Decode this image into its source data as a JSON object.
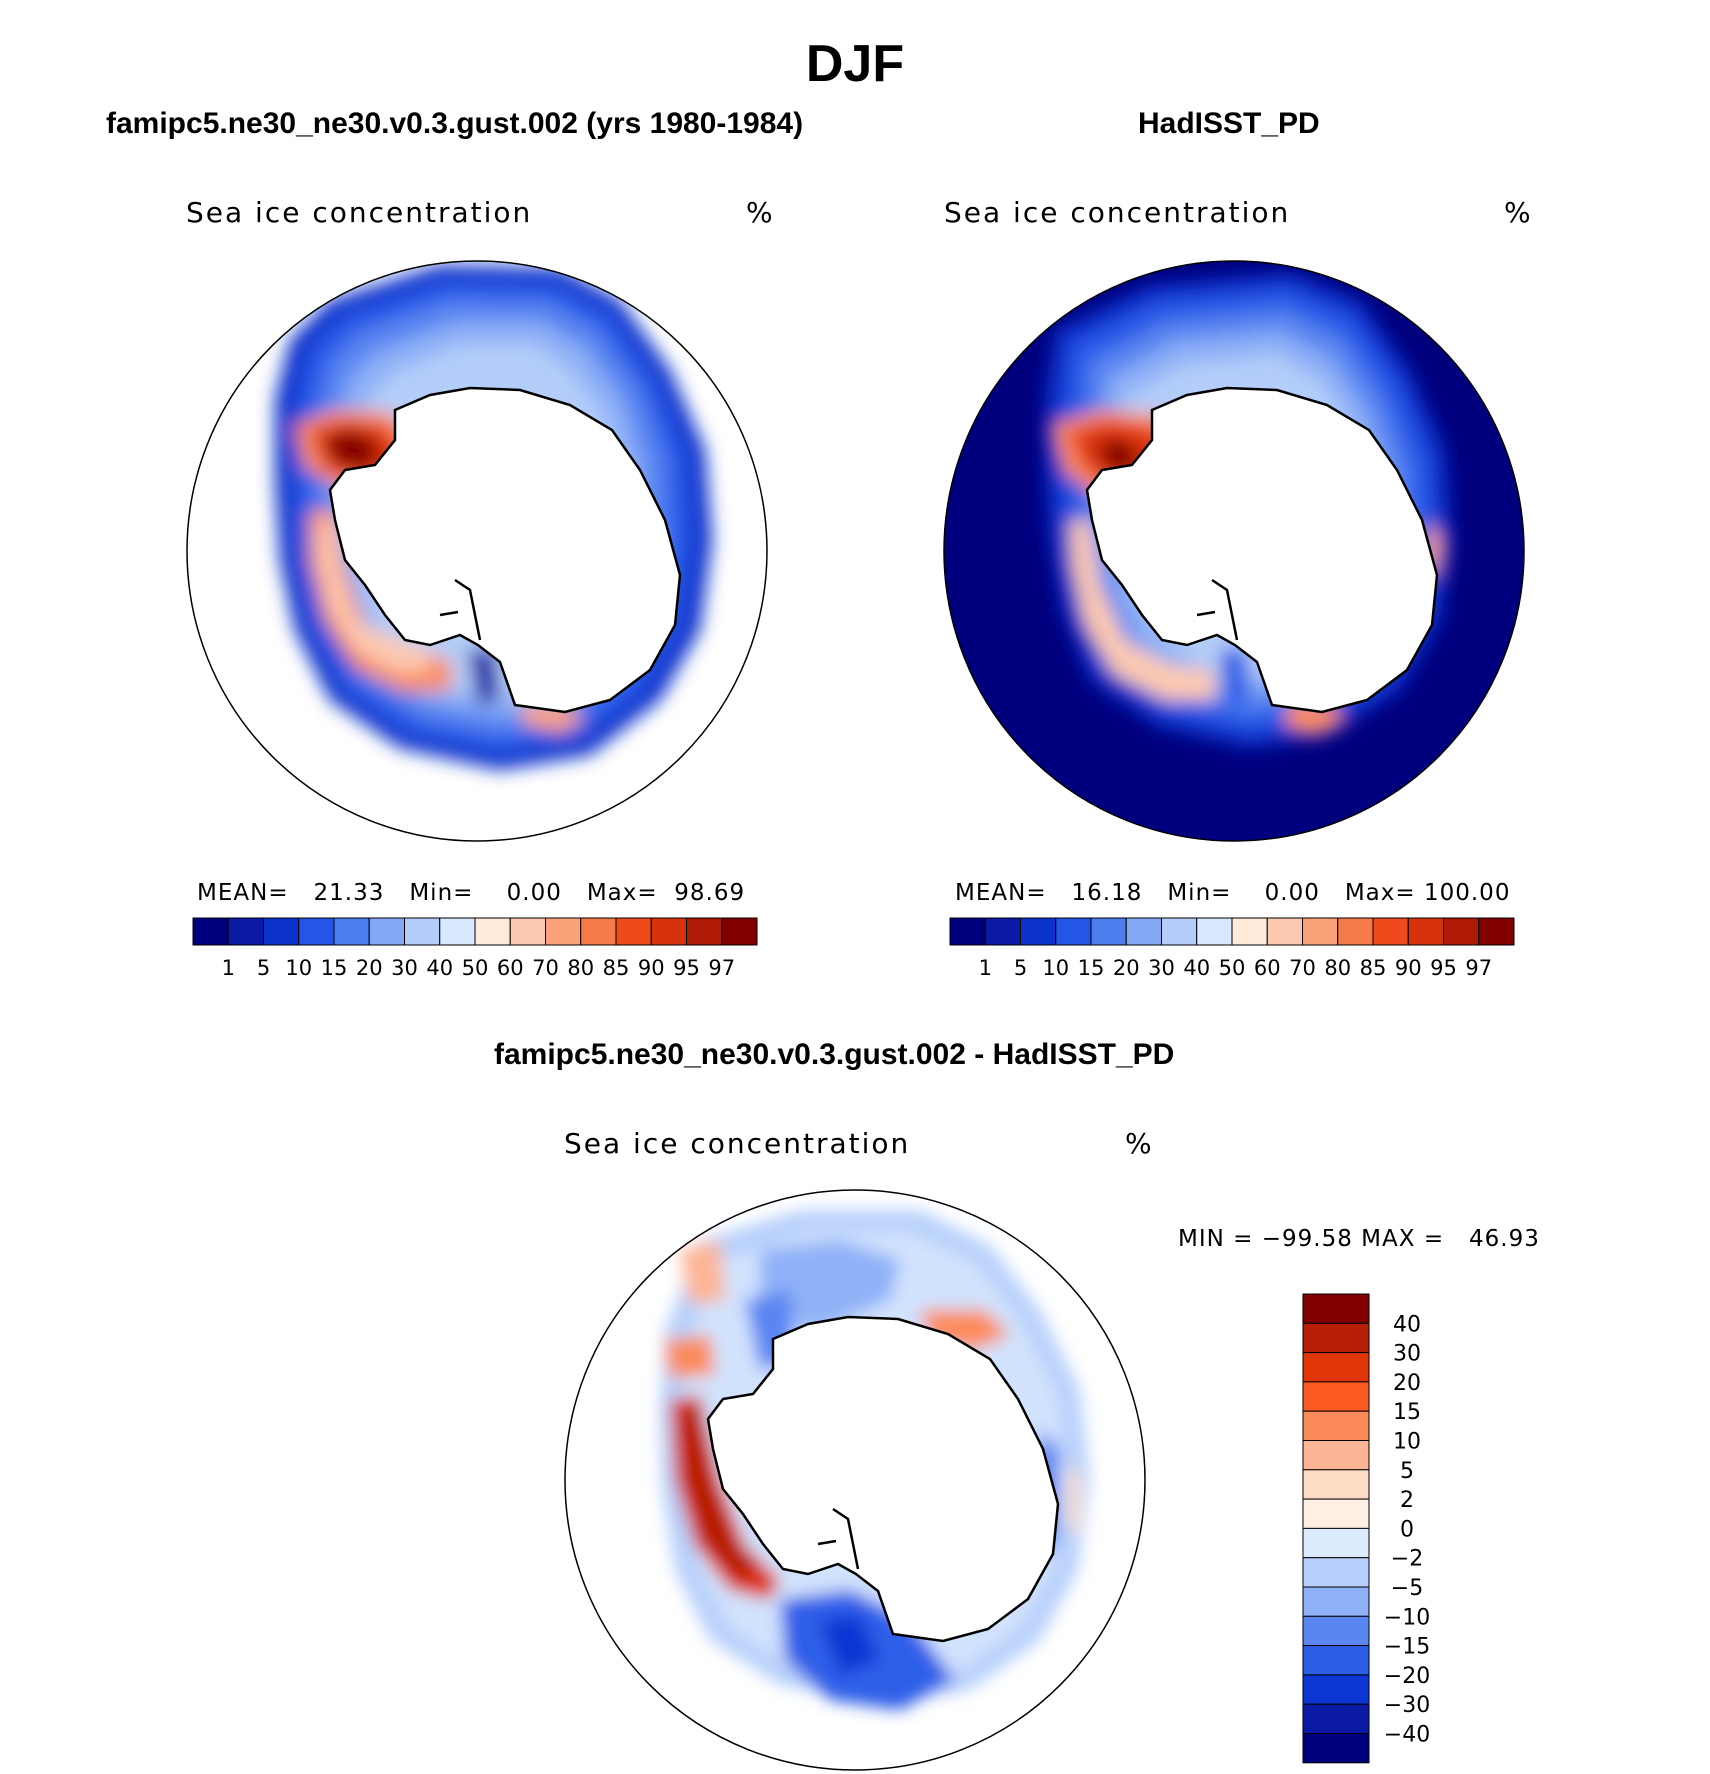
{
  "title": "DJF",
  "panels": [
    {
      "id": "model",
      "heading": "famipc5.ne30_ne30.v0.3.gust.002 (yrs 1980-1984)",
      "variable": "Sea ice concentration",
      "unit": "%",
      "stats": {
        "mean_label": "MEAN=",
        "mean": "21.33",
        "min_label": "Min=",
        "min": "0.00",
        "max_label": "Max=",
        "max": "98.69"
      }
    },
    {
      "id": "obs",
      "heading": "HadISST_PD",
      "variable": "Sea ice concentration",
      "unit": "%",
      "stats": {
        "mean_label": "MEAN=",
        "mean": "16.18",
        "min_label": "Min=",
        "min": "0.00",
        "max_label": "Max=",
        "max": "100.00"
      }
    },
    {
      "id": "diff",
      "heading": "famipc5.ne30_ne30.v0.3.gust.002 - HadISST_PD",
      "variable": "Sea ice concentration",
      "unit": "%",
      "stats": {
        "min_label": "MIN =",
        "min": "−99.58",
        "max_label": "MAX =",
        "max": "46.93"
      }
    }
  ],
  "field_colorbar": {
    "colors": [
      "#00007f",
      "#0a1aa5",
      "#0b33cc",
      "#2356e6",
      "#4d7ef0",
      "#85a8f5",
      "#b4cdf9",
      "#d8e8fd",
      "#feeadb",
      "#fdc9b0",
      "#fca27a",
      "#f77a4a",
      "#ee4a1c",
      "#d6320b",
      "#ae1a06",
      "#800000"
    ],
    "labels": [
      "1",
      "5",
      "10",
      "15",
      "20",
      "30",
      "40",
      "50",
      "60",
      "70",
      "80",
      "85",
      "90",
      "95",
      "97"
    ]
  },
  "diff_colorbar": {
    "colors": [
      "#800000",
      "#b51e05",
      "#e03608",
      "#fb5a21",
      "#fc8b5b",
      "#fdb595",
      "#fddcc6",
      "#feefe5",
      "#dceafd",
      "#b7d0fb",
      "#8fb1f7",
      "#5a86f1",
      "#2d5ee8",
      "#0b36d3",
      "#0a1aa5",
      "#00007f"
    ],
    "labels": [
      "40",
      "30",
      "20",
      "15",
      "10",
      "5",
      "2",
      "0",
      "−2",
      "−5",
      "−10",
      "−15",
      "−20",
      "−30",
      "−40"
    ]
  },
  "map": {
    "projection": "south-polar-stereographic",
    "region": "Antarctica / Southern Ocean"
  }
}
